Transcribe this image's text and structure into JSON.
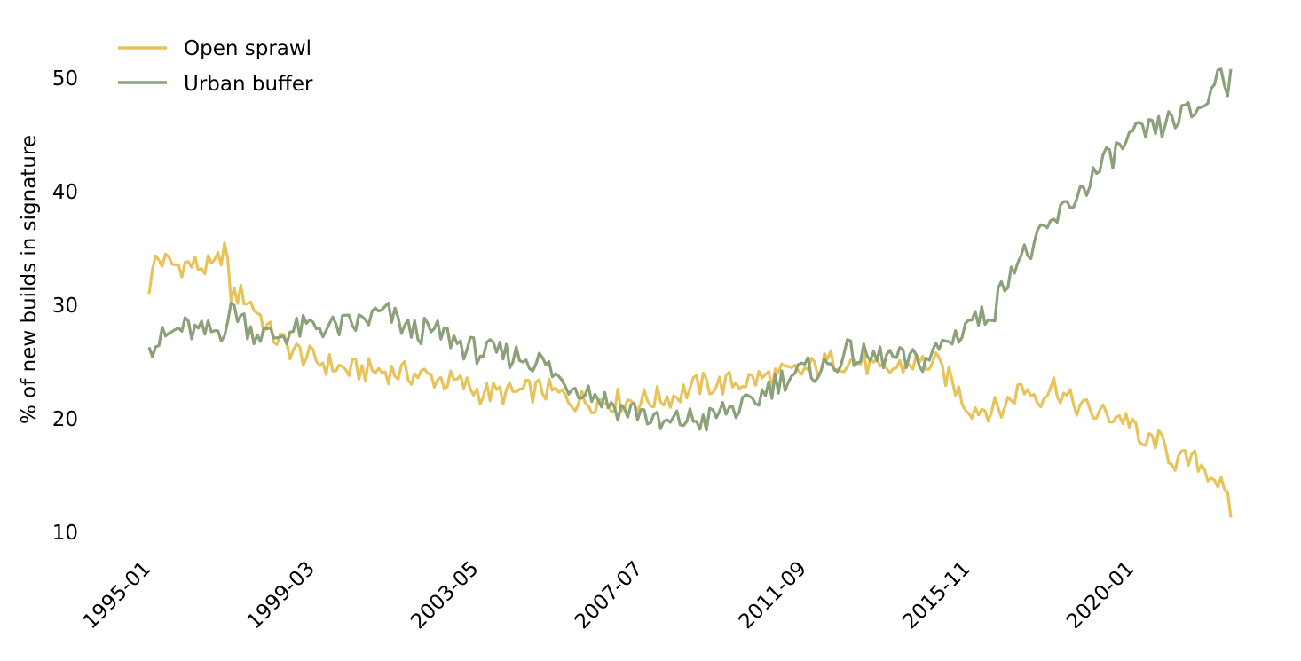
{
  "chart_data": {
    "type": "line",
    "title": "",
    "xlabel": "",
    "ylabel": "% of new builds in signature",
    "xlim": [
      "1995-01",
      "2022-07"
    ],
    "ylim": [
      8.5,
      55
    ],
    "yticks": [
      10,
      20,
      30,
      40,
      50
    ],
    "xticks": [
      "1995-01",
      "1999-03",
      "2003-05",
      "2007-07",
      "2011-09",
      "2015-11",
      "2020-01"
    ],
    "grid": false,
    "legend_position": "top-left",
    "x_start": "1995-01",
    "x_step": "1 month",
    "series": [
      {
        "name": "Open sprawl",
        "color": "#E8C35A",
        "anchors": [
          [
            "1995-01",
            31.0
          ],
          [
            "1995-03",
            34.2
          ],
          [
            "1995-06",
            33.8
          ],
          [
            "1995-09",
            33.5
          ],
          [
            "1996-01",
            33.6
          ],
          [
            "1996-05",
            33.4
          ],
          [
            "1996-09",
            33.2
          ],
          [
            "1996-12",
            35.2
          ],
          [
            "1997-02",
            31.0
          ],
          [
            "1997-06",
            30.8
          ],
          [
            "1997-10",
            29.5
          ],
          [
            "1998-02",
            27.5
          ],
          [
            "1998-08",
            26.2
          ],
          [
            "1999-03",
            25.2
          ],
          [
            "2000-01",
            24.3
          ],
          [
            "2001-01",
            24.2
          ],
          [
            "2002-01",
            23.8
          ],
          [
            "2003-01",
            23.0
          ],
          [
            "2003-06",
            22.3
          ],
          [
            "2004-03",
            22.2
          ],
          [
            "2005-01",
            22.6
          ],
          [
            "2005-11",
            21.6
          ],
          [
            "2006-07",
            21.6
          ],
          [
            "2007-07",
            21.6
          ],
          [
            "2008-05",
            22.0
          ],
          [
            "2009-01",
            23.0
          ],
          [
            "2009-07",
            23.0
          ],
          [
            "2010-06",
            23.5
          ],
          [
            "2011-09",
            24.2
          ],
          [
            "2012-06",
            25.2
          ],
          [
            "2013-03",
            25.0
          ],
          [
            "2013-08",
            24.0
          ],
          [
            "2014-06",
            25.0
          ],
          [
            "2015-01",
            24.8
          ],
          [
            "2015-06",
            23.2
          ],
          [
            "2015-11",
            21.0
          ],
          [
            "2016-09",
            20.8
          ],
          [
            "2017-03",
            22.8
          ],
          [
            "2017-09",
            22.0
          ],
          [
            "2018-01",
            23.0
          ],
          [
            "2018-06",
            21.5
          ],
          [
            "2019-01",
            20.5
          ],
          [
            "2019-09",
            20.2
          ],
          [
            "2020-01",
            19.8
          ],
          [
            "2020-03",
            17.5
          ],
          [
            "2020-08",
            18.3
          ],
          [
            "2021-02",
            16.3
          ],
          [
            "2021-09",
            16.2
          ],
          [
            "2022-03",
            14.6
          ],
          [
            "2022-06",
            12.5
          ],
          [
            "2022-07",
            11.3
          ]
        ]
      },
      {
        "name": "Urban buffer",
        "color": "#8BA17A",
        "anchors": [
          [
            "1995-01",
            26.3
          ],
          [
            "1995-06",
            27.2
          ],
          [
            "1995-11",
            28.0
          ],
          [
            "1996-05",
            27.5
          ],
          [
            "1996-11",
            27.8
          ],
          [
            "1997-03",
            29.8
          ],
          [
            "1997-08",
            27.8
          ],
          [
            "1998-03",
            27.2
          ],
          [
            "1998-10",
            27.8
          ],
          [
            "1999-03",
            28.2
          ],
          [
            "1999-09",
            28.0
          ],
          [
            "2000-04",
            28.3
          ],
          [
            "2000-11",
            29.2
          ],
          [
            "2001-02",
            29.2
          ],
          [
            "2001-08",
            27.8
          ],
          [
            "2002-02",
            27.7
          ],
          [
            "2002-08",
            27.3
          ],
          [
            "2003-02",
            26.2
          ],
          [
            "2003-08",
            25.8
          ],
          [
            "2004-06",
            25.5
          ],
          [
            "2005-01",
            25.0
          ],
          [
            "2005-07",
            23.2
          ],
          [
            "2006-01",
            22.8
          ],
          [
            "2006-07",
            21.8
          ],
          [
            "2007-01",
            20.8
          ],
          [
            "2007-07",
            20.7
          ],
          [
            "2008-01",
            19.3
          ],
          [
            "2008-09",
            20.0
          ],
          [
            "2009-03",
            19.8
          ],
          [
            "2009-09",
            20.8
          ],
          [
            "2010-04",
            21.0
          ],
          [
            "2010-10",
            22.8
          ],
          [
            "2011-04",
            23.8
          ],
          [
            "2011-09",
            24.2
          ],
          [
            "2012-04",
            24.5
          ],
          [
            "2012-10",
            25.8
          ],
          [
            "2013-04",
            25.3
          ],
          [
            "2013-10",
            25.5
          ],
          [
            "2014-04",
            25.0
          ],
          [
            "2014-10",
            25.2
          ],
          [
            "2015-03",
            26.5
          ],
          [
            "2015-08",
            27.5
          ],
          [
            "2015-11",
            28.8
          ],
          [
            "2016-03",
            28.8
          ],
          [
            "2016-07",
            29.8
          ],
          [
            "2016-12",
            33.5
          ],
          [
            "2017-06",
            34.8
          ],
          [
            "2017-12",
            37.0
          ],
          [
            "2018-06",
            39.0
          ],
          [
            "2018-12",
            41.0
          ],
          [
            "2019-06",
            43.0
          ],
          [
            "2019-12",
            44.5
          ],
          [
            "2020-04",
            45.2
          ],
          [
            "2020-09",
            45.5
          ],
          [
            "2021-02",
            46.5
          ],
          [
            "2021-08",
            47.0
          ],
          [
            "2022-01",
            48.5
          ],
          [
            "2022-03",
            51.0
          ],
          [
            "2022-06",
            49.5
          ],
          [
            "2022-07",
            50.8
          ]
        ]
      }
    ]
  }
}
